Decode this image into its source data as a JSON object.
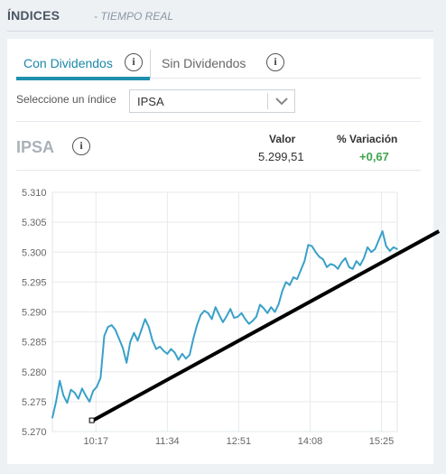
{
  "header": {
    "title": "ÍNDICES",
    "subtitle": "- TIEMPO REAL"
  },
  "tabs": [
    {
      "label": "Con Dividendos",
      "active": true
    },
    {
      "label": "Sin Dividendos",
      "active": false
    }
  ],
  "selector": {
    "label": "Seleccione un índice",
    "value": "IPSA"
  },
  "quote": {
    "name": "IPSA",
    "valor_label": "Valor",
    "valor": "5.299,51",
    "variacion_label": "% Variación",
    "variacion": "+0,67"
  },
  "colors": {
    "accent": "#1f8fae",
    "line": "#3aa0c8",
    "positive": "#3fa34d"
  },
  "icons": [
    "info-icon",
    "chevron-down-icon"
  ],
  "chart_data": {
    "type": "line",
    "title": "",
    "xlabel": "",
    "ylabel": "",
    "ylim": [
      5.27,
      5.31
    ],
    "y_ticks": [
      "5.310",
      "5.305",
      "5.300",
      "5.295",
      "5.290",
      "5.285",
      "5.280",
      "5.275",
      "5.270"
    ],
    "x_ticks": [
      "10:17",
      "11:34",
      "12:51",
      "14:08",
      "15:25"
    ],
    "grid": true,
    "series": [
      {
        "x": [
          "09:30",
          "09:34",
          "09:38",
          "09:42",
          "09:46",
          "09:50",
          "09:54",
          "09:58",
          "10:02",
          "10:06",
          "10:10",
          "10:14",
          "10:18",
          "10:22",
          "10:26",
          "10:30",
          "10:34",
          "10:38",
          "10:42",
          "10:46",
          "10:50",
          "10:54",
          "10:58",
          "11:02",
          "11:06",
          "11:10",
          "11:14",
          "11:18",
          "11:22",
          "11:26",
          "11:30",
          "11:34",
          "11:38",
          "11:42",
          "11:46",
          "11:50",
          "11:54",
          "11:58",
          "12:02",
          "12:06",
          "12:10",
          "12:14",
          "12:18",
          "12:22",
          "12:26",
          "12:30",
          "12:34",
          "12:38",
          "12:42",
          "12:46",
          "12:50",
          "12:54",
          "12:58",
          "13:02",
          "13:06",
          "13:10",
          "13:14",
          "13:18",
          "13:22",
          "13:26",
          "13:30",
          "13:34",
          "13:38",
          "13:42",
          "13:46",
          "13:50",
          "13:54",
          "13:58",
          "14:02",
          "14:06",
          "14:10",
          "14:14",
          "14:18",
          "14:22",
          "14:26",
          "14:30",
          "14:34",
          "14:38",
          "14:42",
          "14:46",
          "14:50",
          "14:54",
          "14:58",
          "15:02",
          "15:06",
          "15:10",
          "15:14",
          "15:18",
          "15:22",
          "15:26",
          "15:30",
          "15:34",
          "15:38",
          "15:42"
        ],
        "values": [
          5.2723,
          5.275,
          5.2785,
          5.276,
          5.2748,
          5.277,
          5.2765,
          5.2755,
          5.2772,
          5.276,
          5.275,
          5.2768,
          5.2775,
          5.279,
          5.286,
          5.2875,
          5.2878,
          5.287,
          5.2855,
          5.284,
          5.2815,
          5.285,
          5.2865,
          5.2852,
          5.287,
          5.2888,
          5.2875,
          5.2852,
          5.2838,
          5.2842,
          5.2835,
          5.283,
          5.2838,
          5.2832,
          5.282,
          5.283,
          5.2822,
          5.2828,
          5.2855,
          5.2878,
          5.2895,
          5.2902,
          5.2898,
          5.2888,
          5.2908,
          5.2895,
          5.2883,
          5.2893,
          5.2905,
          5.289,
          5.2892,
          5.2898,
          5.2888,
          5.288,
          5.2885,
          5.2892,
          5.2912,
          5.2906,
          5.2898,
          5.2908,
          5.29,
          5.2913,
          5.2935,
          5.295,
          5.2945,
          5.2958,
          5.2955,
          5.297,
          5.2985,
          5.3012,
          5.301,
          5.3,
          5.2992,
          5.2988,
          5.2975,
          5.298,
          5.2978,
          5.2972,
          5.2983,
          5.299,
          5.2975,
          5.2972,
          5.2985,
          5.2978,
          5.299,
          5.3008,
          5.3,
          5.3005,
          5.302,
          5.3035,
          5.301,
          5.3002,
          5.3008,
          5.3005
        ]
      }
    ],
    "annotations": [
      {
        "type": "trendline",
        "from": {
          "x": "10:13",
          "y": 5.2718
        },
        "to": {
          "x": "16:27",
          "y": 5.3035
        }
      }
    ]
  }
}
